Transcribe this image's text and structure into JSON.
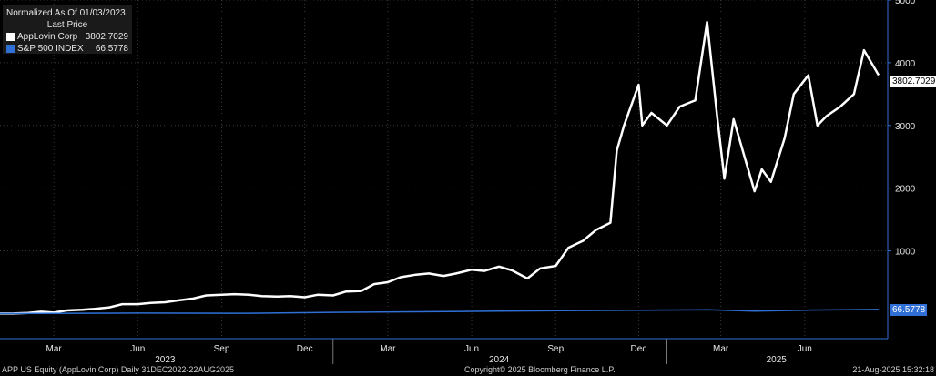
{
  "legend": {
    "normalized_label": "Normalized As Of 01/03/2023",
    "column_header": "Last Price",
    "series": [
      {
        "name": "AppLovin Corp",
        "value": "3802.7029",
        "color": "#ffffff"
      },
      {
        "name": "S&P 500 INDEX",
        "value": "66.5778",
        "color": "#2f6fd6"
      }
    ]
  },
  "footer": {
    "left": "APP US Equity (AppLovin Corp)  Daily 31DEC2022-22AUG2025",
    "center": "Copyright© 2025 Bloomberg Finance L.P.",
    "right": "21-Aug-2025 15:32:18"
  },
  "colors": {
    "background": "#000000",
    "axis": "#2f6fd6",
    "grid": "#3a3a3a",
    "app_line": "#ffffff",
    "spx_line": "#2f6fd6"
  },
  "chart_data": {
    "type": "line",
    "title": "",
    "xlabel": "",
    "ylabel": "",
    "y_ticks": [
      1000,
      2000,
      3000,
      4000,
      5000
    ],
    "ylim": [
      -400,
      5000
    ],
    "xlim": [
      "2023-01-01",
      "2025-08-31"
    ],
    "grid": true,
    "legend_position": "top-left",
    "x_month_ticks": [
      {
        "label": "Mar",
        "date": "2023-03-01"
      },
      {
        "label": "Jun",
        "date": "2023-06-01"
      },
      {
        "label": "Sep",
        "date": "2023-09-01"
      },
      {
        "label": "Dec",
        "date": "2023-12-01"
      },
      {
        "label": "Mar",
        "date": "2024-03-01"
      },
      {
        "label": "Jun",
        "date": "2024-06-01"
      },
      {
        "label": "Sep",
        "date": "2024-09-01"
      },
      {
        "label": "Dec",
        "date": "2024-12-01"
      },
      {
        "label": "Mar",
        "date": "2025-03-01"
      },
      {
        "label": "Jun",
        "date": "2025-06-01"
      }
    ],
    "x_year_labels": [
      {
        "label": "2023",
        "date": "2023-07-01"
      },
      {
        "label": "2024",
        "date": "2024-07-01"
      },
      {
        "label": "2025",
        "date": "2025-05-01"
      }
    ],
    "x_year_dividers": [
      "2024-01-01",
      "2025-01-01"
    ],
    "series": [
      {
        "name": "AppLovin Corp",
        "last_value": "3802.7029",
        "points": [
          [
            "2023-01-01",
            0
          ],
          [
            "2023-01-15",
            0
          ],
          [
            "2023-02-01",
            10
          ],
          [
            "2023-02-15",
            30
          ],
          [
            "2023-03-01",
            15
          ],
          [
            "2023-03-15",
            50
          ],
          [
            "2023-04-01",
            60
          ],
          [
            "2023-04-15",
            75
          ],
          [
            "2023-05-01",
            100
          ],
          [
            "2023-05-15",
            150
          ],
          [
            "2023-06-01",
            150
          ],
          [
            "2023-06-15",
            170
          ],
          [
            "2023-07-01",
            180
          ],
          [
            "2023-07-15",
            210
          ],
          [
            "2023-08-01",
            240
          ],
          [
            "2023-08-15",
            290
          ],
          [
            "2023-09-01",
            300
          ],
          [
            "2023-09-15",
            310
          ],
          [
            "2023-10-01",
            300
          ],
          [
            "2023-10-15",
            280
          ],
          [
            "2023-11-01",
            270
          ],
          [
            "2023-11-15",
            280
          ],
          [
            "2023-12-01",
            260
          ],
          [
            "2023-12-15",
            300
          ],
          [
            "2024-01-01",
            290
          ],
          [
            "2024-01-15",
            350
          ],
          [
            "2024-02-01",
            360
          ],
          [
            "2024-02-15",
            470
          ],
          [
            "2024-03-01",
            500
          ],
          [
            "2024-03-15",
            580
          ],
          [
            "2024-04-01",
            620
          ],
          [
            "2024-04-15",
            640
          ],
          [
            "2024-05-01",
            600
          ],
          [
            "2024-05-15",
            640
          ],
          [
            "2024-06-01",
            700
          ],
          [
            "2024-06-15",
            680
          ],
          [
            "2024-07-01",
            750
          ],
          [
            "2024-07-15",
            690
          ],
          [
            "2024-08-01",
            560
          ],
          [
            "2024-08-15",
            720
          ],
          [
            "2024-09-01",
            760
          ],
          [
            "2024-09-15",
            1050
          ],
          [
            "2024-10-01",
            1160
          ],
          [
            "2024-10-15",
            1330
          ],
          [
            "2024-10-31",
            1450
          ],
          [
            "2024-11-07",
            2600
          ],
          [
            "2024-11-15",
            3000
          ],
          [
            "2024-12-01",
            3650
          ],
          [
            "2024-12-05",
            3000
          ],
          [
            "2024-12-15",
            3200
          ],
          [
            "2025-01-01",
            3000
          ],
          [
            "2025-01-15",
            3300
          ],
          [
            "2025-02-01",
            3400
          ],
          [
            "2025-02-14",
            4650
          ],
          [
            "2025-02-25",
            3150
          ],
          [
            "2025-03-05",
            2150
          ],
          [
            "2025-03-15",
            3100
          ],
          [
            "2025-03-25",
            2600
          ],
          [
            "2025-04-07",
            1950
          ],
          [
            "2025-04-15",
            2300
          ],
          [
            "2025-04-25",
            2100
          ],
          [
            "2025-05-10",
            2800
          ],
          [
            "2025-05-20",
            3500
          ],
          [
            "2025-06-05",
            3800
          ],
          [
            "2025-06-15",
            3000
          ],
          [
            "2025-06-25",
            3150
          ],
          [
            "2025-07-10",
            3300
          ],
          [
            "2025-07-25",
            3500
          ],
          [
            "2025-08-05",
            4200
          ],
          [
            "2025-08-15",
            3950
          ],
          [
            "2025-08-21",
            3802.7
          ]
        ]
      },
      {
        "name": "S&P 500 INDEX",
        "last_value": "66.5778",
        "points": [
          [
            "2023-01-01",
            0
          ],
          [
            "2023-06-01",
            8
          ],
          [
            "2023-10-01",
            5
          ],
          [
            "2024-01-01",
            20
          ],
          [
            "2024-07-01",
            38
          ],
          [
            "2024-12-01",
            55
          ],
          [
            "2025-02-15",
            60
          ],
          [
            "2025-04-07",
            40
          ],
          [
            "2025-06-01",
            55
          ],
          [
            "2025-08-21",
            66.58
          ]
        ]
      }
    ]
  }
}
